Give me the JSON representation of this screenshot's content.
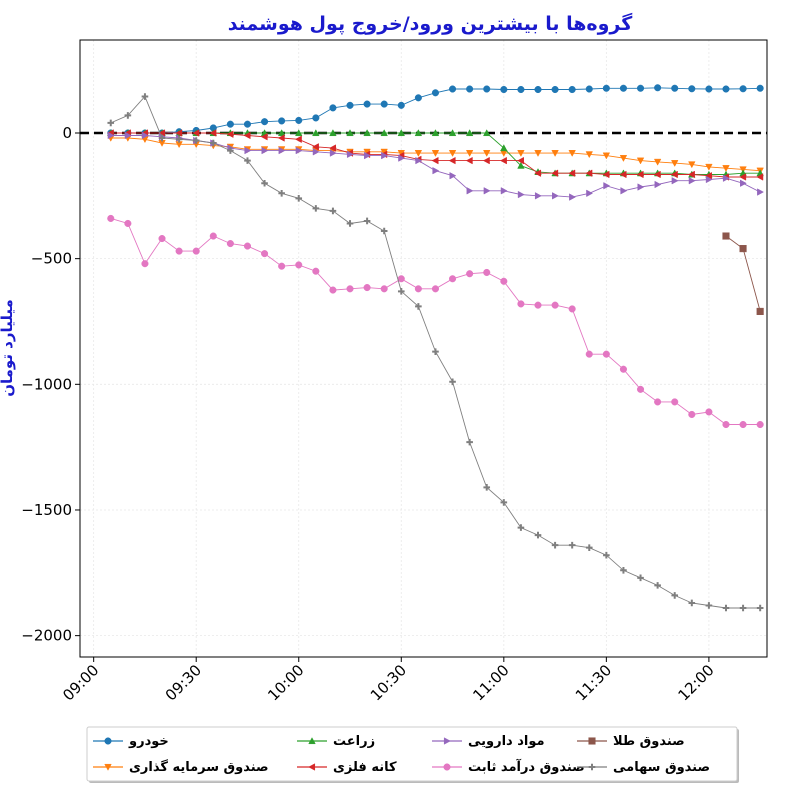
{
  "chart_data": {
    "type": "line",
    "title": "گروه‌ها با بیشترین ورود/خروج پول هوشمند",
    "xlabel": "",
    "ylabel": "میلیارد تومان",
    "x_tick_labels": [
      "09:00",
      "09:30",
      "10:00",
      "10:30",
      "11:00",
      "11:30",
      "12:00"
    ],
    "x_tick_minutes": [
      0,
      30,
      60,
      90,
      120,
      150,
      180
    ],
    "xlim_minutes": [
      -4,
      197
    ],
    "ylim": [
      -2085,
      370
    ],
    "y_ticks": [
      0,
      -500,
      -1000,
      -1500,
      -2000
    ],
    "y_tick_labels": [
      "0",
      "−500",
      "−1000",
      "−1500",
      "−2000"
    ],
    "grid": true,
    "reference_line": {
      "y": 0,
      "style": "dashed",
      "color": "#000000"
    },
    "legend_position": "bottom-center",
    "series": [
      {
        "name": "خودرو",
        "color": "#1f77b4",
        "marker": "circle",
        "x": [
          5,
          10,
          15,
          20,
          25,
          30,
          35,
          40,
          45,
          50,
          55,
          60,
          65,
          70,
          75,
          80,
          85,
          90,
          95,
          100,
          105,
          110,
          115,
          120,
          125,
          130,
          135,
          140,
          145,
          150,
          155,
          160,
          165,
          170,
          175,
          180,
          185,
          190,
          195
        ],
        "y": [
          0,
          0,
          0,
          0,
          5,
          10,
          20,
          35,
          35,
          45,
          48,
          50,
          60,
          100,
          110,
          115,
          115,
          110,
          140,
          160,
          175,
          175,
          175,
          173,
          173,
          173,
          173,
          173,
          175,
          178,
          178,
          178,
          180,
          178,
          176,
          175,
          175,
          176,
          178
        ]
      },
      {
        "name": "صندوق سرمایه گذاری",
        "color": "#ff7f0e",
        "marker": "triangle-down",
        "x": [
          5,
          10,
          15,
          20,
          25,
          30,
          35,
          40,
          45,
          50,
          55,
          60,
          65,
          70,
          75,
          80,
          85,
          90,
          95,
          100,
          105,
          110,
          115,
          120,
          125,
          130,
          135,
          140,
          145,
          150,
          155,
          160,
          165,
          170,
          175,
          180,
          185,
          190,
          195
        ],
        "y": [
          -20,
          -20,
          -25,
          -40,
          -45,
          -45,
          -50,
          -55,
          -65,
          -65,
          -65,
          -65,
          -70,
          -70,
          -75,
          -75,
          -75,
          -80,
          -80,
          -80,
          -80,
          -80,
          -80,
          -80,
          -80,
          -80,
          -80,
          -80,
          -85,
          -90,
          -100,
          -110,
          -115,
          -120,
          -125,
          -135,
          -140,
          -145,
          -150
        ]
      },
      {
        "name": "زراعت",
        "color": "#2ca02c",
        "marker": "triangle-up",
        "x": [
          5,
          10,
          15,
          20,
          25,
          30,
          35,
          40,
          45,
          50,
          55,
          60,
          65,
          70,
          75,
          80,
          85,
          90,
          95,
          100,
          105,
          110,
          115,
          120,
          125,
          130,
          135,
          140,
          145,
          150,
          155,
          160,
          165,
          170,
          175,
          180,
          185,
          190,
          195
        ],
        "y": [
          0,
          0,
          0,
          0,
          0,
          0,
          0,
          0,
          0,
          0,
          0,
          0,
          0,
          0,
          0,
          0,
          0,
          0,
          0,
          0,
          0,
          0,
          0,
          -60,
          -130,
          -155,
          -160,
          -160,
          -160,
          -160,
          -160,
          -160,
          -160,
          -160,
          -165,
          -165,
          -165,
          -160,
          -160
        ]
      },
      {
        "name": "کانه فلزی",
        "color": "#d62728",
        "marker": "triangle-left",
        "x": [
          5,
          10,
          15,
          20,
          25,
          30,
          35,
          40,
          45,
          50,
          55,
          60,
          65,
          70,
          75,
          80,
          85,
          90,
          95,
          100,
          105,
          110,
          115,
          120,
          125,
          130,
          135,
          140,
          145,
          150,
          155,
          160,
          165,
          170,
          175,
          180,
          185,
          190,
          195
        ],
        "y": [
          0,
          0,
          0,
          0,
          0,
          0,
          0,
          -5,
          -10,
          -15,
          -20,
          -25,
          -55,
          -60,
          -80,
          -85,
          -85,
          -90,
          -105,
          -110,
          -110,
          -110,
          -110,
          -110,
          -110,
          -160,
          -160,
          -160,
          -160,
          -165,
          -165,
          -165,
          -165,
          -165,
          -165,
          -170,
          -175,
          -175,
          -175
        ]
      },
      {
        "name": "مواد دارویی",
        "color": "#9467bd",
        "marker": "triangle-right",
        "x": [
          5,
          10,
          15,
          20,
          25,
          30,
          35,
          40,
          45,
          50,
          55,
          60,
          65,
          70,
          75,
          80,
          85,
          90,
          95,
          100,
          105,
          110,
          115,
          120,
          125,
          130,
          135,
          140,
          145,
          150,
          155,
          160,
          165,
          170,
          175,
          180,
          185,
          190,
          195
        ],
        "y": [
          -10,
          -10,
          -10,
          -15,
          -20,
          -30,
          -40,
          -60,
          -70,
          -70,
          -70,
          -70,
          -75,
          -80,
          -85,
          -90,
          -90,
          -100,
          -110,
          -150,
          -170,
          -230,
          -230,
          -230,
          -245,
          -250,
          -250,
          -255,
          -240,
          -210,
          -230,
          -215,
          -205,
          -190,
          -190,
          -185,
          -180,
          -200,
          -235
        ]
      },
      {
        "name": "صندوق درآمد ثابت",
        "color": "#e377c2",
        "marker": "circle",
        "x": [
          5,
          10,
          15,
          20,
          25,
          30,
          35,
          40,
          45,
          50,
          55,
          60,
          65,
          70,
          75,
          80,
          85,
          90,
          95,
          100,
          105,
          110,
          115,
          120,
          125,
          130,
          135,
          140,
          145,
          150,
          155,
          160,
          165,
          170,
          175,
          180,
          185,
          190,
          195
        ],
        "y": [
          -340,
          -360,
          -520,
          -420,
          -470,
          -470,
          -410,
          -440,
          -450,
          -480,
          -530,
          -525,
          -550,
          -625,
          -620,
          -615,
          -620,
          -580,
          -620,
          -620,
          -580,
          -560,
          -555,
          -590,
          -680,
          -685,
          -685,
          -700,
          -880,
          -880,
          -940,
          -1020,
          -1070,
          -1070,
          -1120,
          -1110,
          -1160,
          -1160,
          -1160
        ]
      },
      {
        "name": "صندوق طلا",
        "color": "#8c564b",
        "marker": "square",
        "x": [
          185,
          190,
          195
        ],
        "y": [
          -410,
          -460,
          -710
        ]
      },
      {
        "name": "صندوق سهامی",
        "color": "#7f7f7f",
        "marker": "plus",
        "x": [
          5,
          10,
          15,
          20,
          25,
          30,
          35,
          40,
          45,
          50,
          55,
          60,
          65,
          70,
          75,
          80,
          85,
          90,
          95,
          100,
          105,
          110,
          115,
          120,
          125,
          130,
          135,
          140,
          145,
          150,
          155,
          160,
          165,
          170,
          175,
          180,
          185,
          190,
          195
        ],
        "y": [
          40,
          70,
          145,
          -20,
          -25,
          -30,
          -40,
          -70,
          -110,
          -200,
          -240,
          -260,
          -300,
          -310,
          -360,
          -350,
          -390,
          -630,
          -690,
          -870,
          -990,
          -1230,
          -1410,
          -1470,
          -1570,
          -1600,
          -1640,
          -1640,
          -1650,
          -1680,
          -1740,
          -1770,
          -1800,
          -1840,
          -1870,
          -1880,
          -1890,
          -1890,
          -1890
        ]
      }
    ]
  }
}
